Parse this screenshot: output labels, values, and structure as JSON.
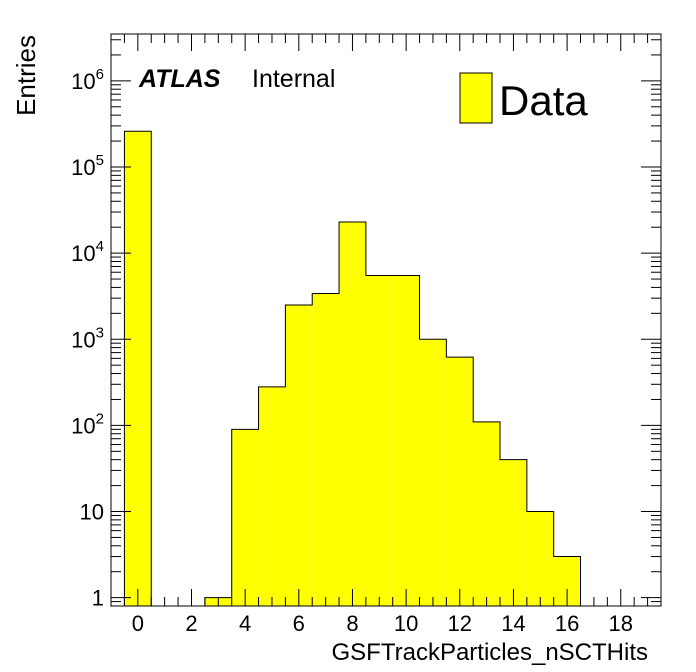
{
  "chart_data": {
    "type": "bar",
    "xlabel": "GSFTrackParticles_nSCTHits",
    "ylabel": "Entries",
    "xlim": [
      -1,
      19.5
    ],
    "ylim": [
      0.8,
      3500000
    ],
    "yscale": "log",
    "grid": false,
    "bar_color": "#ffff00",
    "x_ticks": [
      "0",
      "2",
      "4",
      "6",
      "8",
      "10",
      "12",
      "14",
      "16",
      "18"
    ],
    "y_ticks": [
      {
        "base": "1",
        "exp": ""
      },
      {
        "base": "10",
        "exp": ""
      },
      {
        "base": "10",
        "exp": "2"
      },
      {
        "base": "10",
        "exp": "3"
      },
      {
        "base": "10",
        "exp": "4"
      },
      {
        "base": "10",
        "exp": "5"
      },
      {
        "base": "10",
        "exp": "6"
      }
    ],
    "bins": [
      {
        "x": 0,
        "value": 260000
      },
      {
        "x": 3,
        "value": 1
      },
      {
        "x": 4,
        "value": 90
      },
      {
        "x": 5,
        "value": 280
      },
      {
        "x": 6,
        "value": 2500
      },
      {
        "x": 7,
        "value": 3400
      },
      {
        "x": 8,
        "value": 23000
      },
      {
        "x": 9,
        "value": 5500
      },
      {
        "x": 10,
        "value": 5500
      },
      {
        "x": 11,
        "value": 1000
      },
      {
        "x": 12,
        "value": 620
      },
      {
        "x": 13,
        "value": 110
      },
      {
        "x": 14,
        "value": 40
      },
      {
        "x": 15,
        "value": 10
      },
      {
        "x": 16,
        "value": 3
      }
    ],
    "legend": {
      "label": "Data",
      "position": "top-right"
    },
    "annotation": {
      "bold": "ATLAS",
      "text": "Internal"
    }
  }
}
